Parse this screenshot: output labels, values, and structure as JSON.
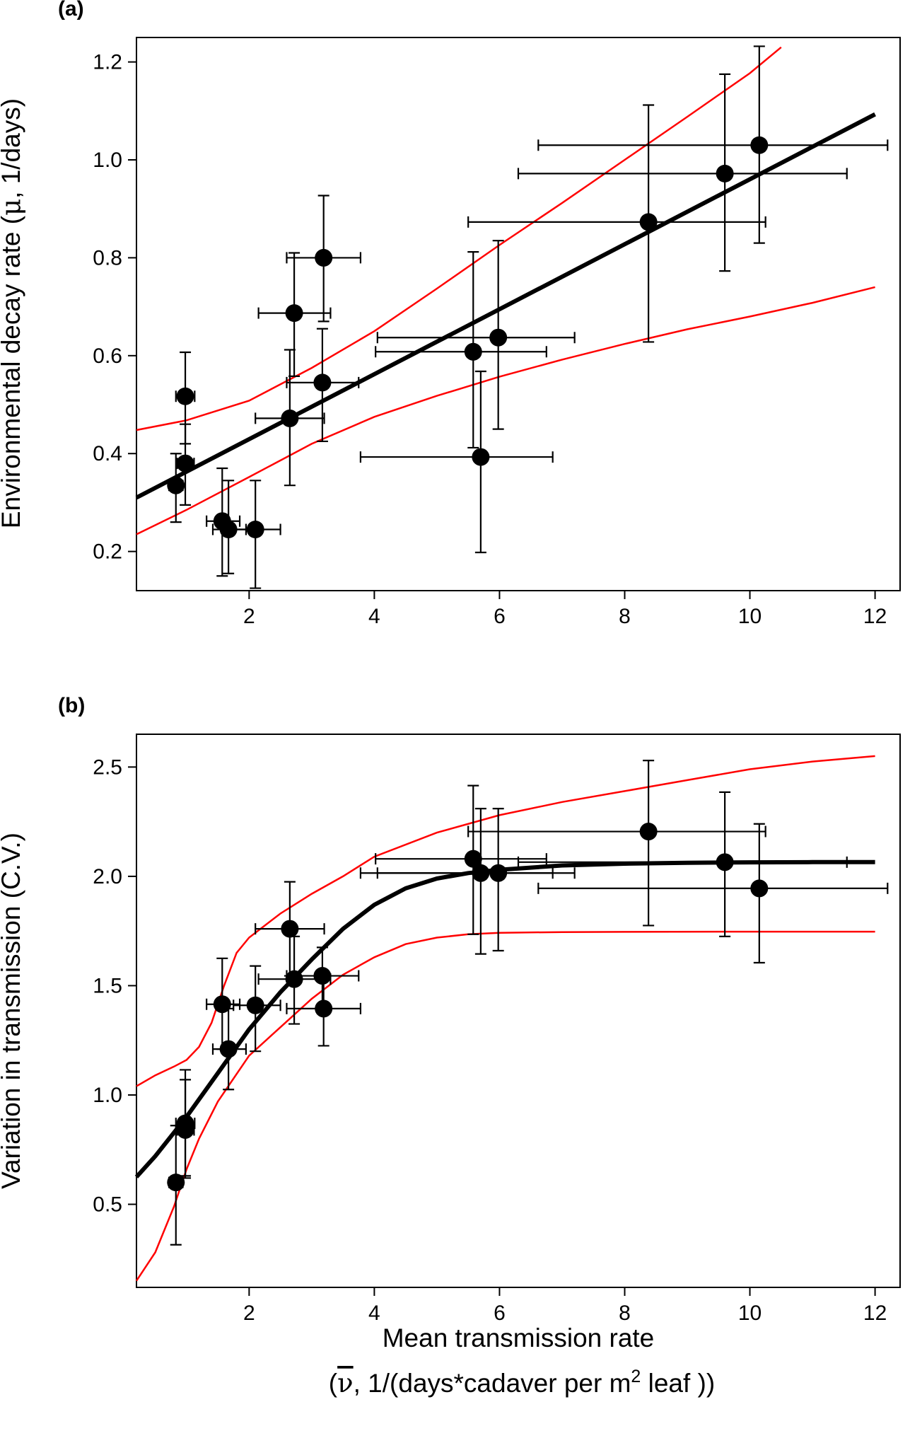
{
  "chart_data": [
    {
      "type": "scatter",
      "panel_label": "(a)",
      "title": "",
      "xlabel": "",
      "ylabel_parts": [
        "Environmental decay rate (",
        "μ",
        ", 1/days)"
      ],
      "xlim": [
        0.2,
        12.4
      ],
      "ylim": [
        0.12,
        1.25
      ],
      "xticks": [
        2,
        4,
        6,
        8,
        10,
        12
      ],
      "xtick_labels": [
        "2",
        "4",
        "6",
        "8",
        "10",
        "12"
      ],
      "yticks": [
        0.2,
        0.4,
        0.6,
        0.8,
        1.0,
        1.2
      ],
      "ytick_labels": [
        "0.2",
        "0.4",
        "0.6",
        "0.8",
        "1.0",
        "1.2"
      ],
      "points": [
        {
          "x": 0.83,
          "y": 0.335,
          "xerr": [
            0.72,
            0.94
          ],
          "yerr": [
            0.26,
            0.4
          ]
        },
        {
          "x": 0.98,
          "y": 0.517,
          "xerr": [
            0.83,
            1.13
          ],
          "yerr": [
            0.42,
            0.607
          ]
        },
        {
          "x": 0.98,
          "y": 0.38,
          "xerr": [
            0.85,
            1.12
          ],
          "yerr": [
            0.295,
            0.46
          ]
        },
        {
          "x": 1.57,
          "y": 0.262,
          "xerr": [
            1.32,
            1.85
          ],
          "yerr": [
            0.15,
            0.37
          ]
        },
        {
          "x": 1.67,
          "y": 0.245,
          "xerr": [
            1.42,
            1.95
          ],
          "yerr": [
            0.155,
            0.345
          ]
        },
        {
          "x": 2.1,
          "y": 0.245,
          "xerr": [
            1.75,
            2.5
          ],
          "yerr": [
            0.125,
            0.345
          ]
        },
        {
          "x": 2.65,
          "y": 0.472,
          "xerr": [
            2.1,
            3.2
          ],
          "yerr": [
            0.335,
            0.612
          ]
        },
        {
          "x": 2.72,
          "y": 0.687,
          "xerr": [
            2.15,
            3.3
          ],
          "yerr": [
            0.558,
            0.81
          ]
        },
        {
          "x": 3.17,
          "y": 0.545,
          "xerr": [
            2.6,
            3.75
          ],
          "yerr": [
            0.425,
            0.655
          ]
        },
        {
          "x": 3.19,
          "y": 0.8,
          "xerr": [
            2.6,
            3.78
          ],
          "yerr": [
            0.67,
            0.927
          ]
        },
        {
          "x": 5.58,
          "y": 0.608,
          "xerr": [
            4.02,
            6.75
          ],
          "yerr": [
            0.412,
            0.812
          ]
        },
        {
          "x": 5.7,
          "y": 0.393,
          "xerr": [
            3.78,
            6.85
          ],
          "yerr": [
            0.198,
            0.568
          ]
        },
        {
          "x": 5.98,
          "y": 0.637,
          "xerr": [
            4.05,
            7.2
          ],
          "yerr": [
            0.45,
            0.835
          ]
        },
        {
          "x": 8.38,
          "y": 0.873,
          "xerr": [
            5.5,
            10.25
          ],
          "yerr": [
            0.628,
            1.112
          ]
        },
        {
          "x": 9.6,
          "y": 0.972,
          "xerr": [
            6.3,
            11.55
          ],
          "yerr": [
            0.773,
            1.175
          ]
        },
        {
          "x": 10.15,
          "y": 1.03,
          "xerr": [
            6.62,
            12.2
          ],
          "yerr": [
            0.83,
            1.232
          ]
        }
      ],
      "fit_line": {
        "x": [
          0.2,
          12.0
        ],
        "y": [
          0.31,
          1.093
        ]
      },
      "ci_upper": {
        "x": [
          0.2,
          1.0,
          2.0,
          3.0,
          4.0,
          5.0,
          6.0,
          7.0,
          8.0,
          9.0,
          10.0,
          10.5
        ],
        "y": [
          0.448,
          0.468,
          0.508,
          0.575,
          0.65,
          0.737,
          0.826,
          0.912,
          1.0,
          1.088,
          1.177,
          1.23
        ]
      },
      "ci_lower": {
        "x": [
          0.2,
          1.0,
          2.0,
          3.0,
          4.0,
          5.0,
          6.0,
          7.0,
          8.0,
          9.0,
          10.0,
          11.0,
          12.0
        ],
        "y": [
          0.235,
          0.285,
          0.352,
          0.42,
          0.475,
          0.518,
          0.557,
          0.592,
          0.624,
          0.654,
          0.68,
          0.708,
          0.74
        ]
      }
    },
    {
      "type": "scatter",
      "panel_label": "(b)",
      "title": "",
      "ylabel": "Variation in transmission (C.V.)",
      "xlabel": "Mean transmission rate",
      "xlabel_line2_parts": [
        "(",
        "ν",
        ", 1/(days*cadaver per m",
        "2",
        " leaf ))"
      ],
      "xlim": [
        0.2,
        12.4
      ],
      "ylim": [
        0.12,
        2.65
      ],
      "xticks": [
        2,
        4,
        6,
        8,
        10,
        12
      ],
      "xtick_labels": [
        "2",
        "4",
        "6",
        "8",
        "10",
        "12"
      ],
      "yticks": [
        0.5,
        1.0,
        1.5,
        2.0,
        2.5
      ],
      "ytick_labels": [
        "0.5",
        "1.0",
        "1.5",
        "2.0",
        "2.5"
      ],
      "points": [
        {
          "x": 0.83,
          "y": 0.6,
          "xerr": [
            0.72,
            0.94
          ],
          "yerr": [
            0.315,
            0.86
          ]
        },
        {
          "x": 0.98,
          "y": 0.87,
          "xerr": [
            0.83,
            1.13
          ],
          "yerr": [
            0.63,
            1.115
          ]
        },
        {
          "x": 0.98,
          "y": 0.84,
          "xerr": [
            0.85,
            1.12
          ],
          "yerr": [
            0.62,
            1.07
          ]
        },
        {
          "x": 1.57,
          "y": 1.415,
          "xerr": [
            1.32,
            1.85
          ],
          "yerr": [
            1.21,
            1.625
          ]
        },
        {
          "x": 1.67,
          "y": 1.21,
          "xerr": [
            1.42,
            1.95
          ],
          "yerr": [
            1.025,
            1.395
          ]
        },
        {
          "x": 2.1,
          "y": 1.41,
          "xerr": [
            1.75,
            2.5
          ],
          "yerr": [
            1.2,
            1.59
          ]
        },
        {
          "x": 2.65,
          "y": 1.76,
          "xerr": [
            2.1,
            3.2
          ],
          "yerr": [
            1.545,
            1.975
          ]
        },
        {
          "x": 2.72,
          "y": 1.53,
          "xerr": [
            2.15,
            3.3
          ],
          "yerr": [
            1.325,
            1.725
          ]
        },
        {
          "x": 3.17,
          "y": 1.545,
          "xerr": [
            2.6,
            3.75
          ],
          "yerr": [
            1.395,
            1.675
          ]
        },
        {
          "x": 3.19,
          "y": 1.395,
          "xerr": [
            2.6,
            3.78
          ],
          "yerr": [
            1.225,
            1.55
          ]
        },
        {
          "x": 5.58,
          "y": 2.08,
          "xerr": [
            4.02,
            6.75
          ],
          "yerr": [
            1.735,
            2.415
          ]
        },
        {
          "x": 5.7,
          "y": 2.015,
          "xerr": [
            3.78,
            6.85
          ],
          "yerr": [
            1.645,
            2.31
          ]
        },
        {
          "x": 5.98,
          "y": 2.015,
          "xerr": [
            4.05,
            7.2
          ],
          "yerr": [
            1.66,
            2.31
          ]
        },
        {
          "x": 8.38,
          "y": 2.205,
          "xerr": [
            5.5,
            10.25
          ],
          "yerr": [
            1.775,
            2.53
          ]
        },
        {
          "x": 9.6,
          "y": 2.065,
          "xerr": [
            6.3,
            11.55
          ],
          "yerr": [
            1.725,
            2.385
          ]
        },
        {
          "x": 10.15,
          "y": 1.945,
          "xerr": [
            6.62,
            12.2
          ],
          "yerr": [
            1.605,
            2.24
          ]
        }
      ],
      "fit_line": {
        "x": [
          0.2,
          0.5,
          1.0,
          1.5,
          2.0,
          2.5,
          3.0,
          3.5,
          4.0,
          4.5,
          5.0,
          5.5,
          6.0,
          7.0,
          8.0,
          9.0,
          10.0,
          11.0,
          12.0
        ],
        "y": [
          0.625,
          0.72,
          0.9,
          1.1,
          1.3,
          1.47,
          1.62,
          1.76,
          1.87,
          1.945,
          1.99,
          2.015,
          2.03,
          2.05,
          2.058,
          2.062,
          2.064,
          2.065,
          2.065
        ]
      },
      "ci_upper": {
        "x": [
          0.2,
          0.5,
          0.8,
          1.0,
          1.2,
          1.4,
          1.6,
          1.8,
          2.0,
          2.5,
          3.0,
          3.5,
          4.0,
          5.0,
          6.0,
          7.0,
          8.0,
          9.0,
          10.0,
          11.0,
          12.0
        ],
        "y": [
          1.04,
          1.09,
          1.13,
          1.16,
          1.22,
          1.33,
          1.5,
          1.65,
          1.72,
          1.83,
          1.92,
          2.0,
          2.09,
          2.2,
          2.28,
          2.34,
          2.39,
          2.44,
          2.49,
          2.525,
          2.55
        ]
      },
      "ci_lower": {
        "x": [
          0.2,
          0.5,
          0.8,
          1.0,
          1.2,
          1.5,
          2.0,
          2.5,
          3.0,
          3.5,
          4.0,
          4.5,
          5.0,
          5.5,
          6.0,
          7.0,
          8.0,
          10.0,
          12.0
        ],
        "y": [
          0.15,
          0.28,
          0.49,
          0.66,
          0.8,
          0.97,
          1.18,
          1.31,
          1.44,
          1.55,
          1.63,
          1.69,
          1.72,
          1.735,
          1.742,
          1.745,
          1.746,
          1.747,
          1.747
        ]
      }
    }
  ]
}
